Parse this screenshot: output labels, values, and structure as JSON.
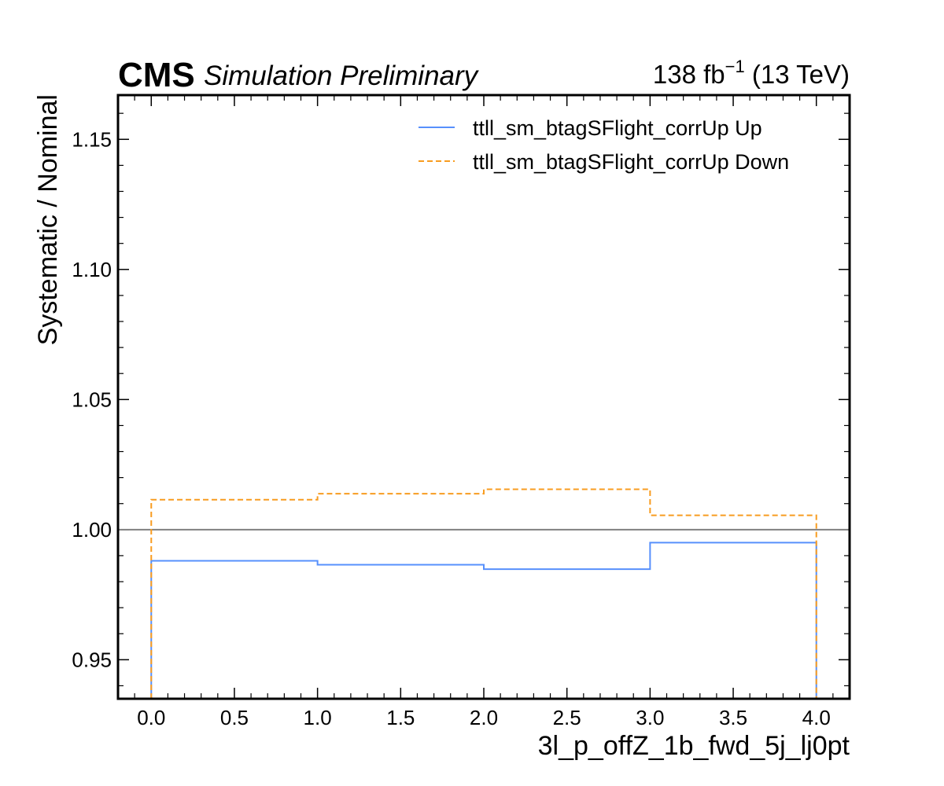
{
  "header": {
    "experiment": "CMS",
    "status": "Simulation Preliminary",
    "lumi_prefix": "138 fb",
    "lumi_exp": "−1",
    "lumi_suffix": " (13 TeV)"
  },
  "chart_data": {
    "type": "line",
    "xlabel": "3l_p_offZ_1b_fwd_5j_lj0pt",
    "ylabel": "Systematic / Nominal",
    "xlim": [
      -0.2,
      4.2
    ],
    "ylim": [
      0.935,
      1.167
    ],
    "xticks": [
      0.0,
      0.5,
      1.0,
      1.5,
      2.0,
      2.5,
      3.0,
      3.5,
      4.0
    ],
    "xtick_labels": [
      "0.0",
      "0.5",
      "1.0",
      "1.5",
      "2.0",
      "2.5",
      "3.0",
      "3.5",
      "4.0"
    ],
    "yticks": [
      0.95,
      1.0,
      1.05,
      1.1,
      1.15
    ],
    "ytick_labels": [
      "0.95",
      "1.00",
      "1.05",
      "1.10",
      "1.15"
    ],
    "reference_line": 1.0,
    "bin_edges": [
      0,
      1,
      2,
      3,
      4
    ],
    "series": [
      {
        "name": "ttll_sm_btagSFlight_corrUp Up",
        "style": "solid",
        "color": "#5790fc",
        "values": [
          0.988,
          0.9865,
          0.9848,
          0.995
        ]
      },
      {
        "name": "ttll_sm_btagSFlight_corrUp Down",
        "style": "dashed",
        "color": "#f89c20",
        "values": [
          1.0115,
          1.0138,
          1.0155,
          1.0055
        ]
      }
    ],
    "grid": false,
    "legend_position": "top-right"
  }
}
